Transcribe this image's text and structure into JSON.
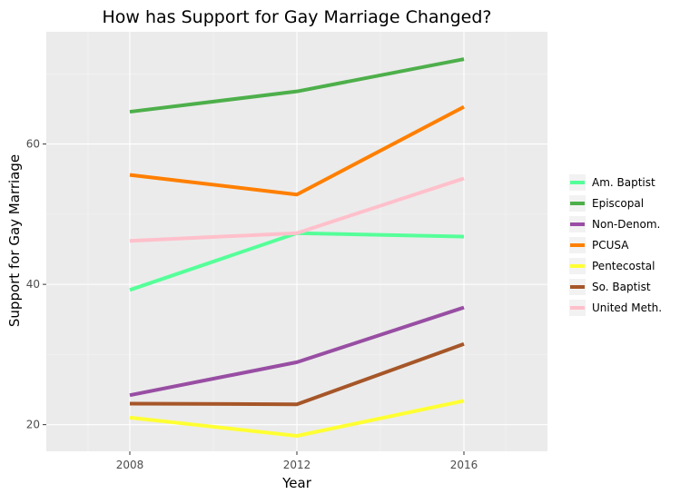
{
  "chart_data": {
    "type": "line",
    "title": "How has Support for Gay Marriage Changed?",
    "xlabel": "Year",
    "ylabel": "Support for Gay Marriage",
    "x": [
      2008,
      2012,
      2016
    ],
    "xlim": [
      2006,
      2018
    ],
    "ylim": [
      16.2,
      76.0
    ],
    "y_ticks": [
      20,
      40,
      60
    ],
    "grid": true,
    "legend_position": "right",
    "series": [
      {
        "name": "Am. Baptist",
        "color": "#55ff99",
        "values": [
          39.2,
          47.3,
          46.8
        ]
      },
      {
        "name": "Episcopal",
        "color": "#4daf4a",
        "values": [
          64.6,
          67.5,
          72.1
        ]
      },
      {
        "name": "Non-Denom.",
        "color": "#984ea3",
        "values": [
          24.2,
          28.9,
          36.7
        ]
      },
      {
        "name": "PCUSA",
        "color": "#ff7f00",
        "values": [
          55.6,
          52.8,
          65.3
        ]
      },
      {
        "name": "Pentecostal",
        "color": "#ffff33",
        "values": [
          21.0,
          18.4,
          23.4
        ]
      },
      {
        "name": "So. Baptist",
        "color": "#a65628",
        "values": [
          23.0,
          22.9,
          31.5
        ]
      },
      {
        "name": "United Meth.",
        "color": "#ffc0cb",
        "values": [
          46.2,
          47.3,
          55.1
        ]
      }
    ]
  }
}
